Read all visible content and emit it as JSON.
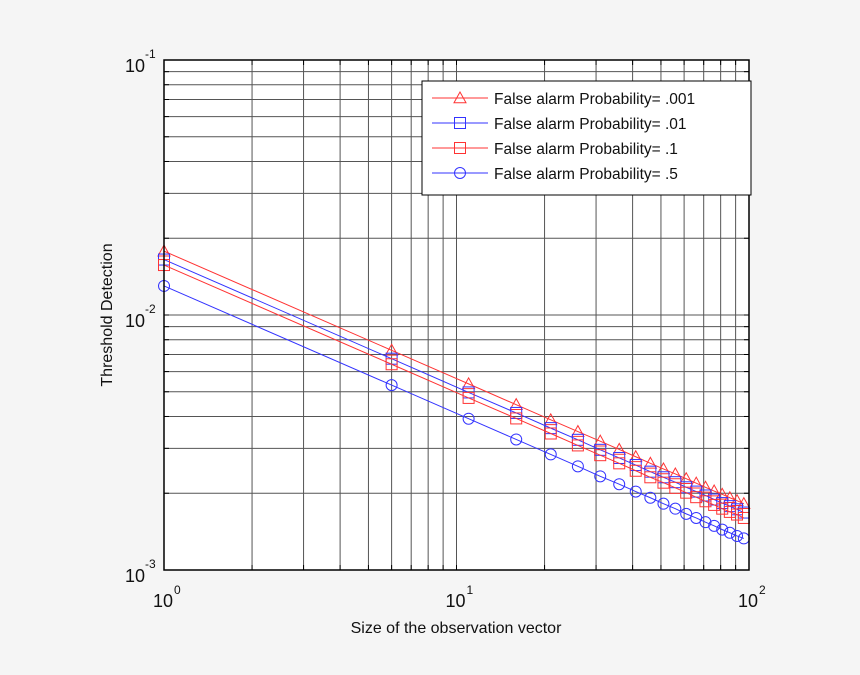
{
  "chart_data": {
    "type": "line",
    "title": "",
    "xlabel": "Size of the observation vector",
    "ylabel": "Threshold Detection",
    "xscale": "log",
    "yscale": "log",
    "xlim": [
      1,
      100
    ],
    "ylim": [
      0.001,
      0.1
    ],
    "grid": true,
    "legend_position": "upper right",
    "x_ticks": [
      {
        "value": 1,
        "base": "10",
        "exp": "0"
      },
      {
        "value": 10,
        "base": "10",
        "exp": "1"
      },
      {
        "value": 100,
        "base": "10",
        "exp": "2"
      }
    ],
    "y_ticks": [
      {
        "value": 0.1,
        "base": "10",
        "exp": "-1"
      },
      {
        "value": 0.01,
        "base": "10",
        "exp": "-2"
      },
      {
        "value": 0.001,
        "base": "10",
        "exp": "-3"
      }
    ],
    "x": [
      1,
      6,
      11,
      16,
      21,
      26,
      31,
      36,
      41,
      46,
      51,
      56,
      61,
      66,
      71,
      76,
      81,
      86,
      91,
      96
    ],
    "series": [
      {
        "name": "False alarm Probability= .001",
        "color": "#ff3333",
        "marker": "triangle",
        "values": [
          0.0178,
          0.00727,
          0.00537,
          0.00445,
          0.00388,
          0.00349,
          0.0032,
          0.00297,
          0.00278,
          0.00262,
          0.00249,
          0.00238,
          0.00228,
          0.00219,
          0.00211,
          0.00204,
          0.00198,
          0.00192,
          0.00187,
          0.00182
        ]
      },
      {
        "name": "False alarm Probability= .01",
        "color": "#3333ff",
        "marker": "square",
        "values": [
          0.0165,
          0.00674,
          0.00497,
          0.00413,
          0.0036,
          0.00324,
          0.00296,
          0.00275,
          0.00258,
          0.00243,
          0.00231,
          0.00221,
          0.00211,
          0.00203,
          0.00196,
          0.00189,
          0.00183,
          0.00178,
          0.00173,
          0.00168
        ]
      },
      {
        "name": "False alarm Probability= .1",
        "color": "#ff3333",
        "marker": "square",
        "values": [
          0.0157,
          0.00641,
          0.00473,
          0.00393,
          0.00343,
          0.00308,
          0.00282,
          0.00262,
          0.00245,
          0.00231,
          0.0022,
          0.0021,
          0.00201,
          0.00193,
          0.00186,
          0.0018,
          0.00174,
          0.00169,
          0.00165,
          0.0016
        ]
      },
      {
        "name": "False alarm Probability= .5",
        "color": "#3333ff",
        "marker": "circle",
        "values": [
          0.013,
          0.00531,
          0.00392,
          0.00325,
          0.00284,
          0.00255,
          0.00233,
          0.00217,
          0.00203,
          0.00192,
          0.00182,
          0.00174,
          0.00166,
          0.0016,
          0.00154,
          0.00149,
          0.00144,
          0.0014,
          0.00136,
          0.00133
        ]
      }
    ]
  },
  "colors": {
    "page_background": "#f5f5f5",
    "plot_background": "#ffffff",
    "grid": "#555555",
    "axis": "#000000"
  }
}
